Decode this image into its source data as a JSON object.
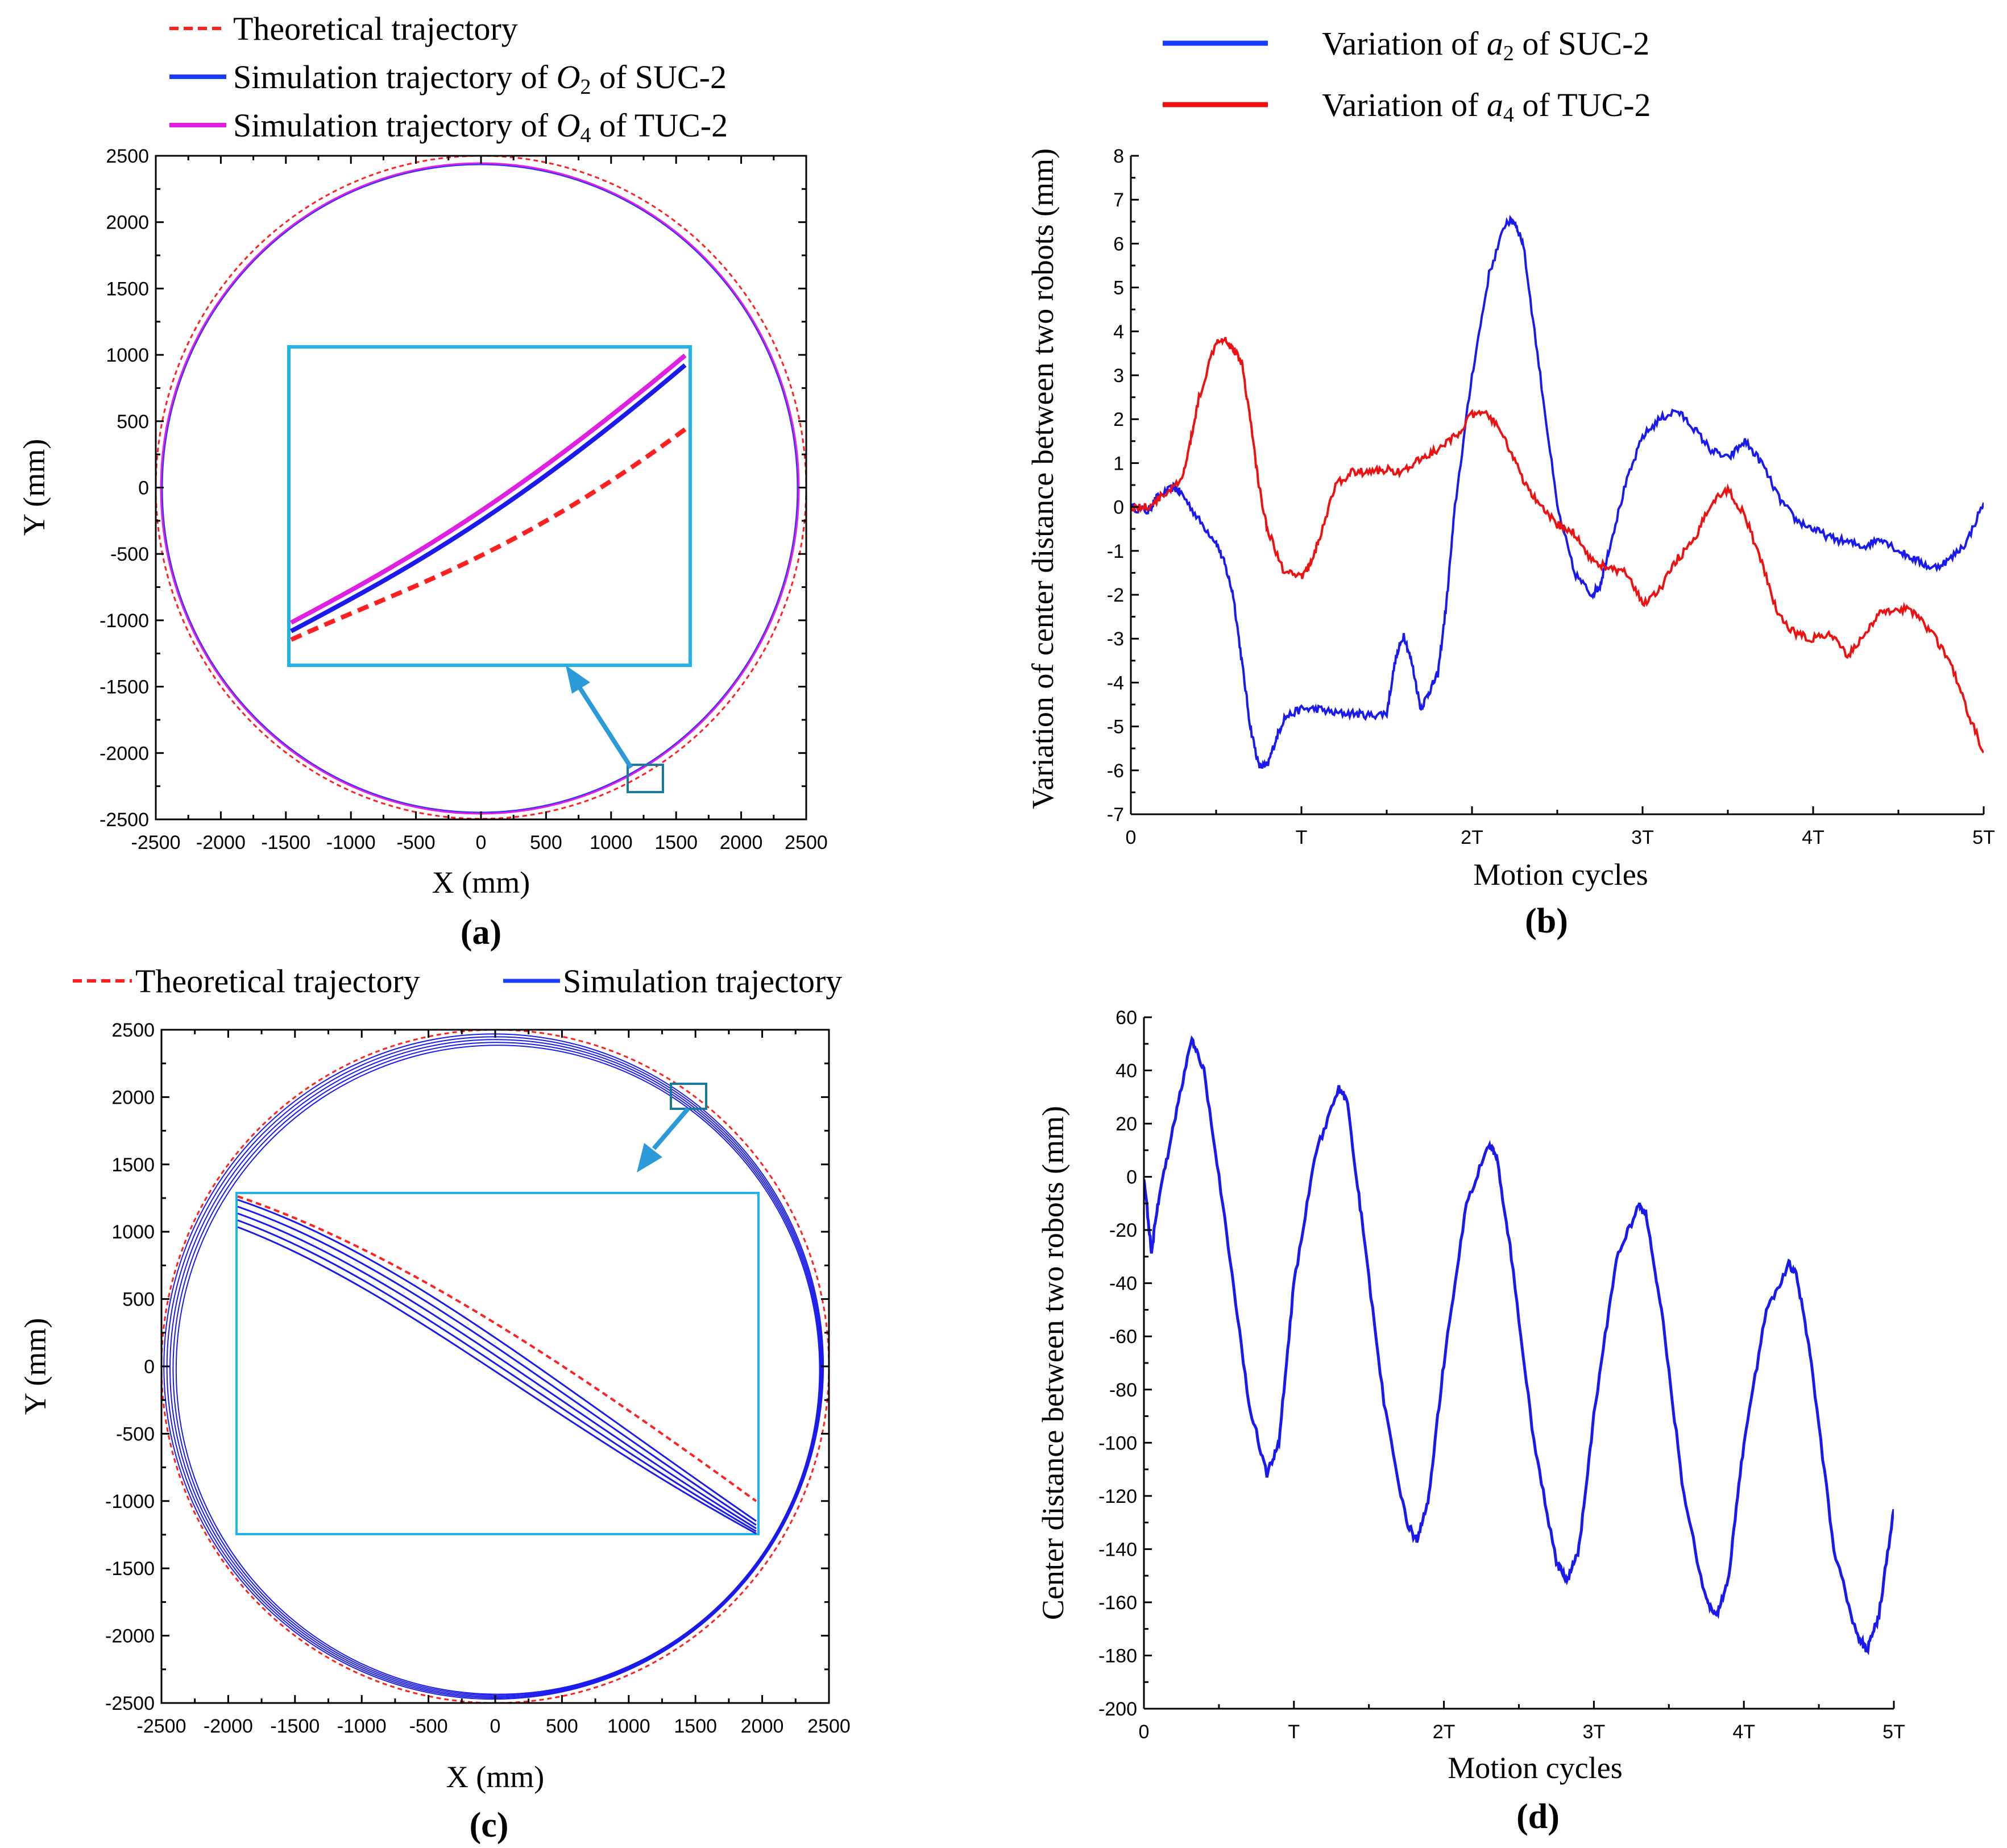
{
  "chart_data": [
    {
      "panel": "a",
      "type": "line",
      "panel_label": "(a)",
      "xlabel": "X (mm)",
      "ylabel": "Y (mm)",
      "xlim": [
        -2500,
        2500
      ],
      "ylim": [
        -2500,
        2500
      ],
      "xticks": [
        -2500,
        -2000,
        -1500,
        -1000,
        -500,
        0,
        500,
        1000,
        1500,
        2000,
        2500
      ],
      "yticks": [
        -2500,
        -2000,
        -1500,
        -1000,
        -500,
        0,
        500,
        1000,
        1500,
        2000,
        2500
      ],
      "legend": [
        {
          "name": "Theoretical trajectory",
          "color": "#ff2020",
          "style": "dashed"
        },
        {
          "name_prefix": "Simulation trajectory of ",
          "var": "O",
          "sub": "2",
          "name_suffix": " of SUC-2",
          "color": "#1a3cff",
          "style": "solid"
        },
        {
          "name_prefix": "Simulation trajectory of ",
          "var": "O",
          "sub": "4",
          "name_suffix": " of TUC-2",
          "color": "#e020e0",
          "style": "solid"
        }
      ],
      "series": [
        {
          "name": "Theoretical trajectory",
          "shape": "circle",
          "center": [
            0,
            0
          ],
          "radius": 2500
        },
        {
          "name": "Simulation trajectory of O2 of SUC-2",
          "shape": "circle",
          "center": [
            0,
            0
          ],
          "radius": 2420
        },
        {
          "name": "Simulation trajectory of O4 of TUC-2",
          "shape": "circle",
          "center": [
            0,
            0
          ],
          "radius": 2430
        }
      ],
      "zoom_region": {
        "x": [
          1100,
          1350
        ],
        "y": [
          -2300,
          -2070
        ]
      }
    },
    {
      "panel": "b",
      "type": "line",
      "panel_label": "(b)",
      "xlabel": "Motion cycles",
      "ylabel": "Variation of center distance between two robots (mm)",
      "xlim": [
        0,
        5
      ],
      "ylim": [
        -7,
        8
      ],
      "xtick_labels": [
        "0",
        "T",
        "2T",
        "3T",
        "4T",
        "5T"
      ],
      "yticks": [
        -7,
        -6,
        -5,
        -4,
        -3,
        -2,
        -1,
        0,
        1,
        2,
        3,
        4,
        5,
        6,
        7,
        8
      ],
      "legend": [
        {
          "name_prefix": "Variation of ",
          "var": "a",
          "sub": "2",
          "name_suffix": " of SUC-2",
          "color": "#1a3cff"
        },
        {
          "name_prefix": "Variation of ",
          "var": "a",
          "sub": "4",
          "name_suffix": " of TUC-2",
          "color": "#ee1111"
        }
      ],
      "series": [
        {
          "name": "Variation of a2 of SUC-2",
          "color": "#1a1aee",
          "x": [
            0,
            0.1,
            0.15,
            0.25,
            0.3,
            0.4,
            0.5,
            0.55,
            0.6,
            0.65,
            0.7,
            0.75,
            0.8,
            0.85,
            0.9,
            1.0,
            1.1,
            1.2,
            1.3,
            1.4,
            1.5,
            1.55,
            1.6,
            1.65,
            1.7,
            1.75,
            1.8,
            1.85,
            1.9,
            2.0,
            2.1,
            2.2,
            2.25,
            2.3,
            2.4,
            2.5,
            2.6,
            2.7,
            2.75,
            2.8,
            2.9,
            3.0,
            3.1,
            3.2,
            3.3,
            3.4,
            3.5,
            3.6,
            3.7,
            3.8,
            3.9,
            4.0,
            4.1,
            4.2,
            4.3,
            4.4,
            4.5,
            4.6,
            4.7,
            4.8,
            4.9,
            5.0
          ],
          "y": [
            0,
            -0.1,
            0.2,
            0.45,
            0.3,
            -0.3,
            -0.8,
            -1.3,
            -2.0,
            -3.5,
            -5.0,
            -5.9,
            -5.9,
            -5.3,
            -4.8,
            -4.6,
            -4.6,
            -4.7,
            -4.7,
            -4.75,
            -4.7,
            -3.5,
            -2.9,
            -3.6,
            -4.6,
            -4.2,
            -3.8,
            -2.2,
            0.0,
            3.0,
            5.3,
            6.5,
            6.5,
            6.0,
            3.0,
            0.0,
            -1.5,
            -2.0,
            -1.8,
            -1.0,
            0.5,
            1.6,
            2.0,
            2.2,
            1.8,
            1.3,
            1.1,
            1.5,
            1.0,
            0.2,
            -0.3,
            -0.5,
            -0.7,
            -0.8,
            -0.9,
            -0.7,
            -1.0,
            -1.2,
            -1.4,
            -1.2,
            -0.8,
            0.1
          ]
        },
        {
          "name": "Variation of a4 of TUC-2",
          "color": "#ee1111",
          "x": [
            0,
            0.1,
            0.2,
            0.3,
            0.35,
            0.4,
            0.5,
            0.55,
            0.6,
            0.65,
            0.7,
            0.75,
            0.8,
            0.9,
            1.0,
            1.05,
            1.1,
            1.2,
            1.3,
            1.4,
            1.5,
            1.6,
            1.7,
            1.8,
            1.9,
            2.0,
            2.1,
            2.2,
            2.3,
            2.4,
            2.5,
            2.6,
            2.7,
            2.8,
            2.9,
            3.0,
            3.1,
            3.2,
            3.3,
            3.4,
            3.5,
            3.6,
            3.7,
            3.8,
            3.9,
            4.0,
            4.1,
            4.2,
            4.3,
            4.4,
            4.5,
            4.6,
            4.7,
            4.8,
            4.9,
            5.0
          ],
          "y": [
            0,
            0,
            0.3,
            0.6,
            1.5,
            2.5,
            3.8,
            3.85,
            3.6,
            3.3,
            2.0,
            0.5,
            -0.5,
            -1.5,
            -1.6,
            -1.3,
            -0.8,
            0.5,
            0.8,
            0.8,
            0.85,
            0.8,
            1.1,
            1.3,
            1.6,
            2.1,
            2.1,
            1.5,
            0.6,
            0.0,
            -0.4,
            -0.6,
            -1.2,
            -1.4,
            -1.5,
            -2.2,
            -1.9,
            -1.2,
            -0.8,
            0.1,
            0.4,
            -0.2,
            -1.3,
            -2.5,
            -2.9,
            -3.0,
            -2.9,
            -3.4,
            -2.9,
            -2.4,
            -2.3,
            -2.4,
            -2.9,
            -3.5,
            -4.6,
            -5.6
          ]
        }
      ]
    },
    {
      "panel": "c",
      "type": "line",
      "panel_label": "(c)",
      "xlabel": "X (mm)",
      "ylabel": "Y (mm)",
      "xlim": [
        -2500,
        2500
      ],
      "ylim": [
        -2500,
        2500
      ],
      "xticks": [
        -2500,
        -2000,
        -1500,
        -1000,
        -500,
        0,
        500,
        1000,
        1500,
        2000,
        2500
      ],
      "yticks": [
        -2500,
        -2000,
        -1500,
        -1000,
        -500,
        0,
        500,
        1000,
        1500,
        2000,
        2500
      ],
      "legend": [
        {
          "name": "Theoretical trajectory",
          "color": "#ff2020",
          "style": "dashed"
        },
        {
          "name": "Simulation trajectory",
          "color": "#1a3cff",
          "style": "solid"
        }
      ],
      "series": [
        {
          "name": "Theoretical trajectory",
          "shape": "circle",
          "center": [
            0,
            0
          ],
          "radius": 2500
        },
        {
          "name": "Simulation trajectory",
          "shape": "circle-set",
          "count": 5,
          "radius_range": [
            2410,
            2470
          ]
        }
      ],
      "zoom_region": {
        "x": [
          1320,
          1580
        ],
        "y": [
          1870,
          2070
        ]
      }
    },
    {
      "panel": "d",
      "type": "line",
      "panel_label": "(d)",
      "xlabel": "Motion cycles",
      "ylabel": "Center distance between two robots (mm)",
      "xlim": [
        0,
        5
      ],
      "ylim": [
        -200,
        60
      ],
      "xtick_labels": [
        "0",
        "T",
        "2T",
        "3T",
        "4T",
        "5T"
      ],
      "yticks": [
        -200,
        -180,
        -160,
        -140,
        -120,
        -100,
        -80,
        -60,
        -40,
        -20,
        0,
        20,
        40,
        60
      ],
      "series": [
        {
          "name": "Center distance",
          "color": "#1a1aee",
          "x": [
            0,
            0.05,
            0.1,
            0.2,
            0.32,
            0.4,
            0.55,
            0.7,
            0.82,
            0.9,
            1.0,
            1.15,
            1.3,
            1.35,
            1.45,
            1.6,
            1.75,
            1.82,
            1.9,
            2.0,
            2.15,
            2.3,
            2.35,
            2.45,
            2.6,
            2.75,
            2.82,
            2.9,
            3.0,
            3.15,
            3.3,
            3.35,
            3.45,
            3.6,
            3.75,
            3.82,
            3.9,
            4.0,
            4.15,
            4.3,
            4.35,
            4.45,
            4.6,
            4.75,
            4.82,
            4.9,
            5.0
          ],
          "y": [
            0,
            -28,
            -8,
            20,
            52,
            40,
            -20,
            -85,
            -112,
            -100,
            -40,
            10,
            33,
            30,
            -15,
            -85,
            -130,
            -137,
            -120,
            -70,
            -10,
            12,
            8,
            -30,
            -100,
            -145,
            -152,
            -140,
            -90,
            -30,
            -11,
            -14,
            -50,
            -120,
            -160,
            -165,
            -150,
            -100,
            -50,
            -33,
            -36,
            -70,
            -140,
            -172,
            -178,
            -165,
            -125
          ]
        }
      ]
    }
  ]
}
